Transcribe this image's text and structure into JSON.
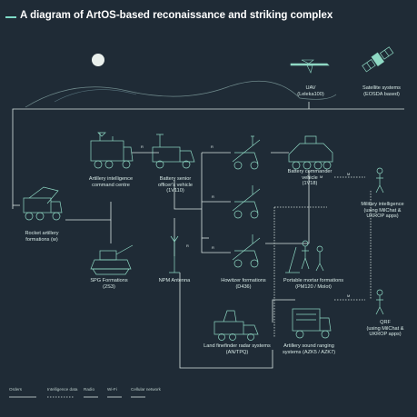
{
  "title": "A diagram of ArtOS-based reconaissance and striking complex",
  "colors": {
    "background": "#1f2b36",
    "accent": "#7ddac6",
    "line": "#d8e4e2",
    "icon": "#8fd9c4"
  },
  "nodes": {
    "uav": "UAV\n(Leleka100)",
    "satellite": "Satellite systems\n(EOSDA based)",
    "intel_centre": "Artillery intelligence\ncommand centre",
    "senior_officer": "Battery senior\nofficer's vehicle\n(1V110)",
    "battery_commander": "Battery commander\nvehicle\n(1V18)",
    "military_intel": "Military intelligence\n(using MilChat &\nUKROP apps)",
    "rocket": "Rocket artillery\nformations (w)",
    "spg": "SPG Formations\n(2S3)",
    "antenna": "NPM Antenna",
    "howitzer": "Howitzer formations\n(D436)",
    "mortar": "Portable mortar formations\n(PM120 / Molot)",
    "qrf": "QRF\n(using MilChat &\nUKROP apps)",
    "rangefinder": "Land finefinder radar systems\n(AN/TPQ)",
    "sound_ranging": "Artillery sound ranging\nsystems (AZK5 / AZK7)"
  },
  "legend": {
    "orders": "Orders",
    "intel": "Intelligence data",
    "radio": "Radio",
    "wifi": "Wi-Fi",
    "cellular": "Cellular network"
  },
  "icons": [
    "mountains-icon",
    "moon-icon",
    "uav-icon",
    "satellite-icon",
    "command-truck-icon",
    "officer-vehicle-icon",
    "apc-icon",
    "soldier-icon",
    "launcher-truck-icon",
    "spg-icon",
    "antenna-icon",
    "howitzer-icon",
    "mortar-icon",
    "radar-truck-icon",
    "sound-ranging-truck-icon"
  ]
}
